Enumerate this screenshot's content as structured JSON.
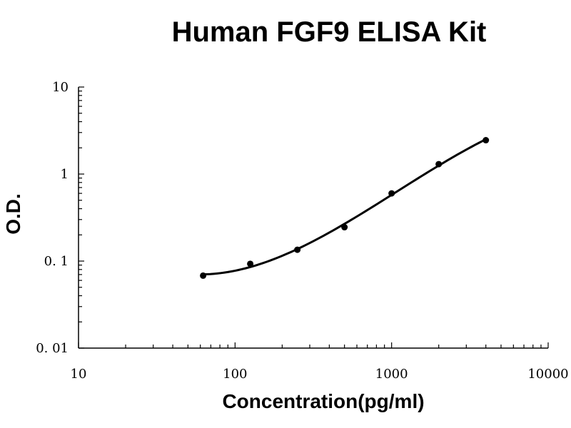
{
  "chart_data": {
    "type": "scatter",
    "title": "Human FGF9 ELISA Kit",
    "xlabel": "Concentration(pg/ml)",
    "ylabel": "O.D.",
    "x_scale": "log",
    "y_scale": "log",
    "xlim": [
      10,
      10000
    ],
    "ylim": [
      0.01,
      10
    ],
    "x_ticks": [
      "10",
      "100",
      "1000",
      "10000"
    ],
    "y_ticks": [
      "0. 01",
      "0. 1",
      "1",
      "10"
    ],
    "grid": false,
    "legend": "none",
    "series": [
      {
        "points": [
          {
            "x": 62.5,
            "y": 0.068
          },
          {
            "x": 125,
            "y": 0.093
          },
          {
            "x": 250,
            "y": 0.135
          },
          {
            "x": 500,
            "y": 0.245
          },
          {
            "x": 1000,
            "y": 0.6
          },
          {
            "x": 2000,
            "y": 1.3
          },
          {
            "x": 4000,
            "y": 2.45
          }
        ],
        "fit_curve": true
      }
    ]
  }
}
